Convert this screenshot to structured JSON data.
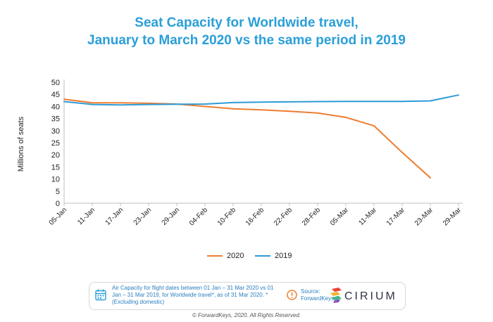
{
  "chart_data": {
    "type": "line",
    "title_lines": [
      "Seat Capacity for Worldwide travel,",
      "January to March 2020 vs the same period in 2019"
    ],
    "xlabel": "",
    "ylabel": "Millions of seats",
    "ylim": [
      0,
      50
    ],
    "yticks": [
      0,
      5,
      10,
      15,
      20,
      25,
      30,
      35,
      40,
      45,
      50
    ],
    "grid": false,
    "legend_position": "bottom",
    "x": [
      "05-Jan",
      "11-Jan",
      "17-Jan",
      "23-Jan",
      "29-Jan",
      "04-Feb",
      "10-Feb",
      "16-Feb",
      "22-Feb",
      "28-Feb",
      "05-Mar",
      "11-Mar",
      "17-Mar",
      "23-Mar",
      "29-Mar"
    ],
    "series": [
      {
        "name": "2020",
        "color": "#ed7d31",
        "values": [
          43.0,
          41.5,
          41.5,
          41.3,
          41.0,
          40.0,
          39.0,
          38.6,
          38.0,
          37.3,
          35.5,
          32.0,
          21.0,
          10.5,
          null
        ],
        "x_offset": 0
      },
      {
        "name": "2019",
        "color": "#2e9bd6",
        "values": [
          42.0,
          40.8,
          40.6,
          40.8,
          40.9,
          41.0,
          41.6,
          41.8,
          41.9,
          42.0,
          42.1,
          42.1,
          42.1,
          42.3,
          44.7
        ],
        "x_offset": 0
      }
    ]
  },
  "legend": {
    "items": [
      "2020",
      "2019"
    ]
  },
  "footer": {
    "note": "Air Capacity for flight dates between 01 Jan – 31 Mar 2020 vs 01 Jan – 31 Mar 2019, for Worldwide travel*, as of 31 Mar 2020. *(Excluding domestic)",
    "source": "Source: ForwardKeys &",
    "cirium": "CIRIUM",
    "copyright": "© ForwardKeys, 2020. All Rights Reserved."
  }
}
